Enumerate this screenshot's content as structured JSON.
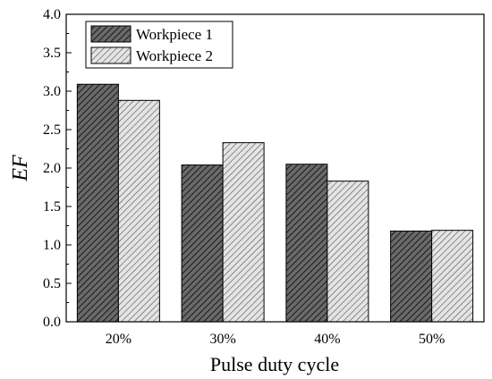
{
  "chart_data": {
    "type": "bar",
    "title": "",
    "xlabel": "Pulse duty cycle",
    "ylabel": "EF",
    "categories": [
      "20%",
      "30%",
      "40%",
      "50%"
    ],
    "series": [
      {
        "name": "Workpiece 1",
        "values": [
          3.09,
          2.04,
          2.05,
          1.18
        ]
      },
      {
        "name": "Workpiece 2",
        "values": [
          2.88,
          2.33,
          1.83,
          1.19
        ]
      }
    ],
    "ylim": [
      0,
      4.0
    ],
    "yticks": [
      "0.0",
      "0.5",
      "1.0",
      "1.5",
      "2.0",
      "2.5",
      "3.0",
      "3.5",
      "4.0"
    ],
    "grid": false,
    "legend_position": "top-left",
    "colors": {
      "series_1_fill": "#555555",
      "series_2_fill": "#d0d0d0",
      "hatch": "#000000"
    }
  }
}
